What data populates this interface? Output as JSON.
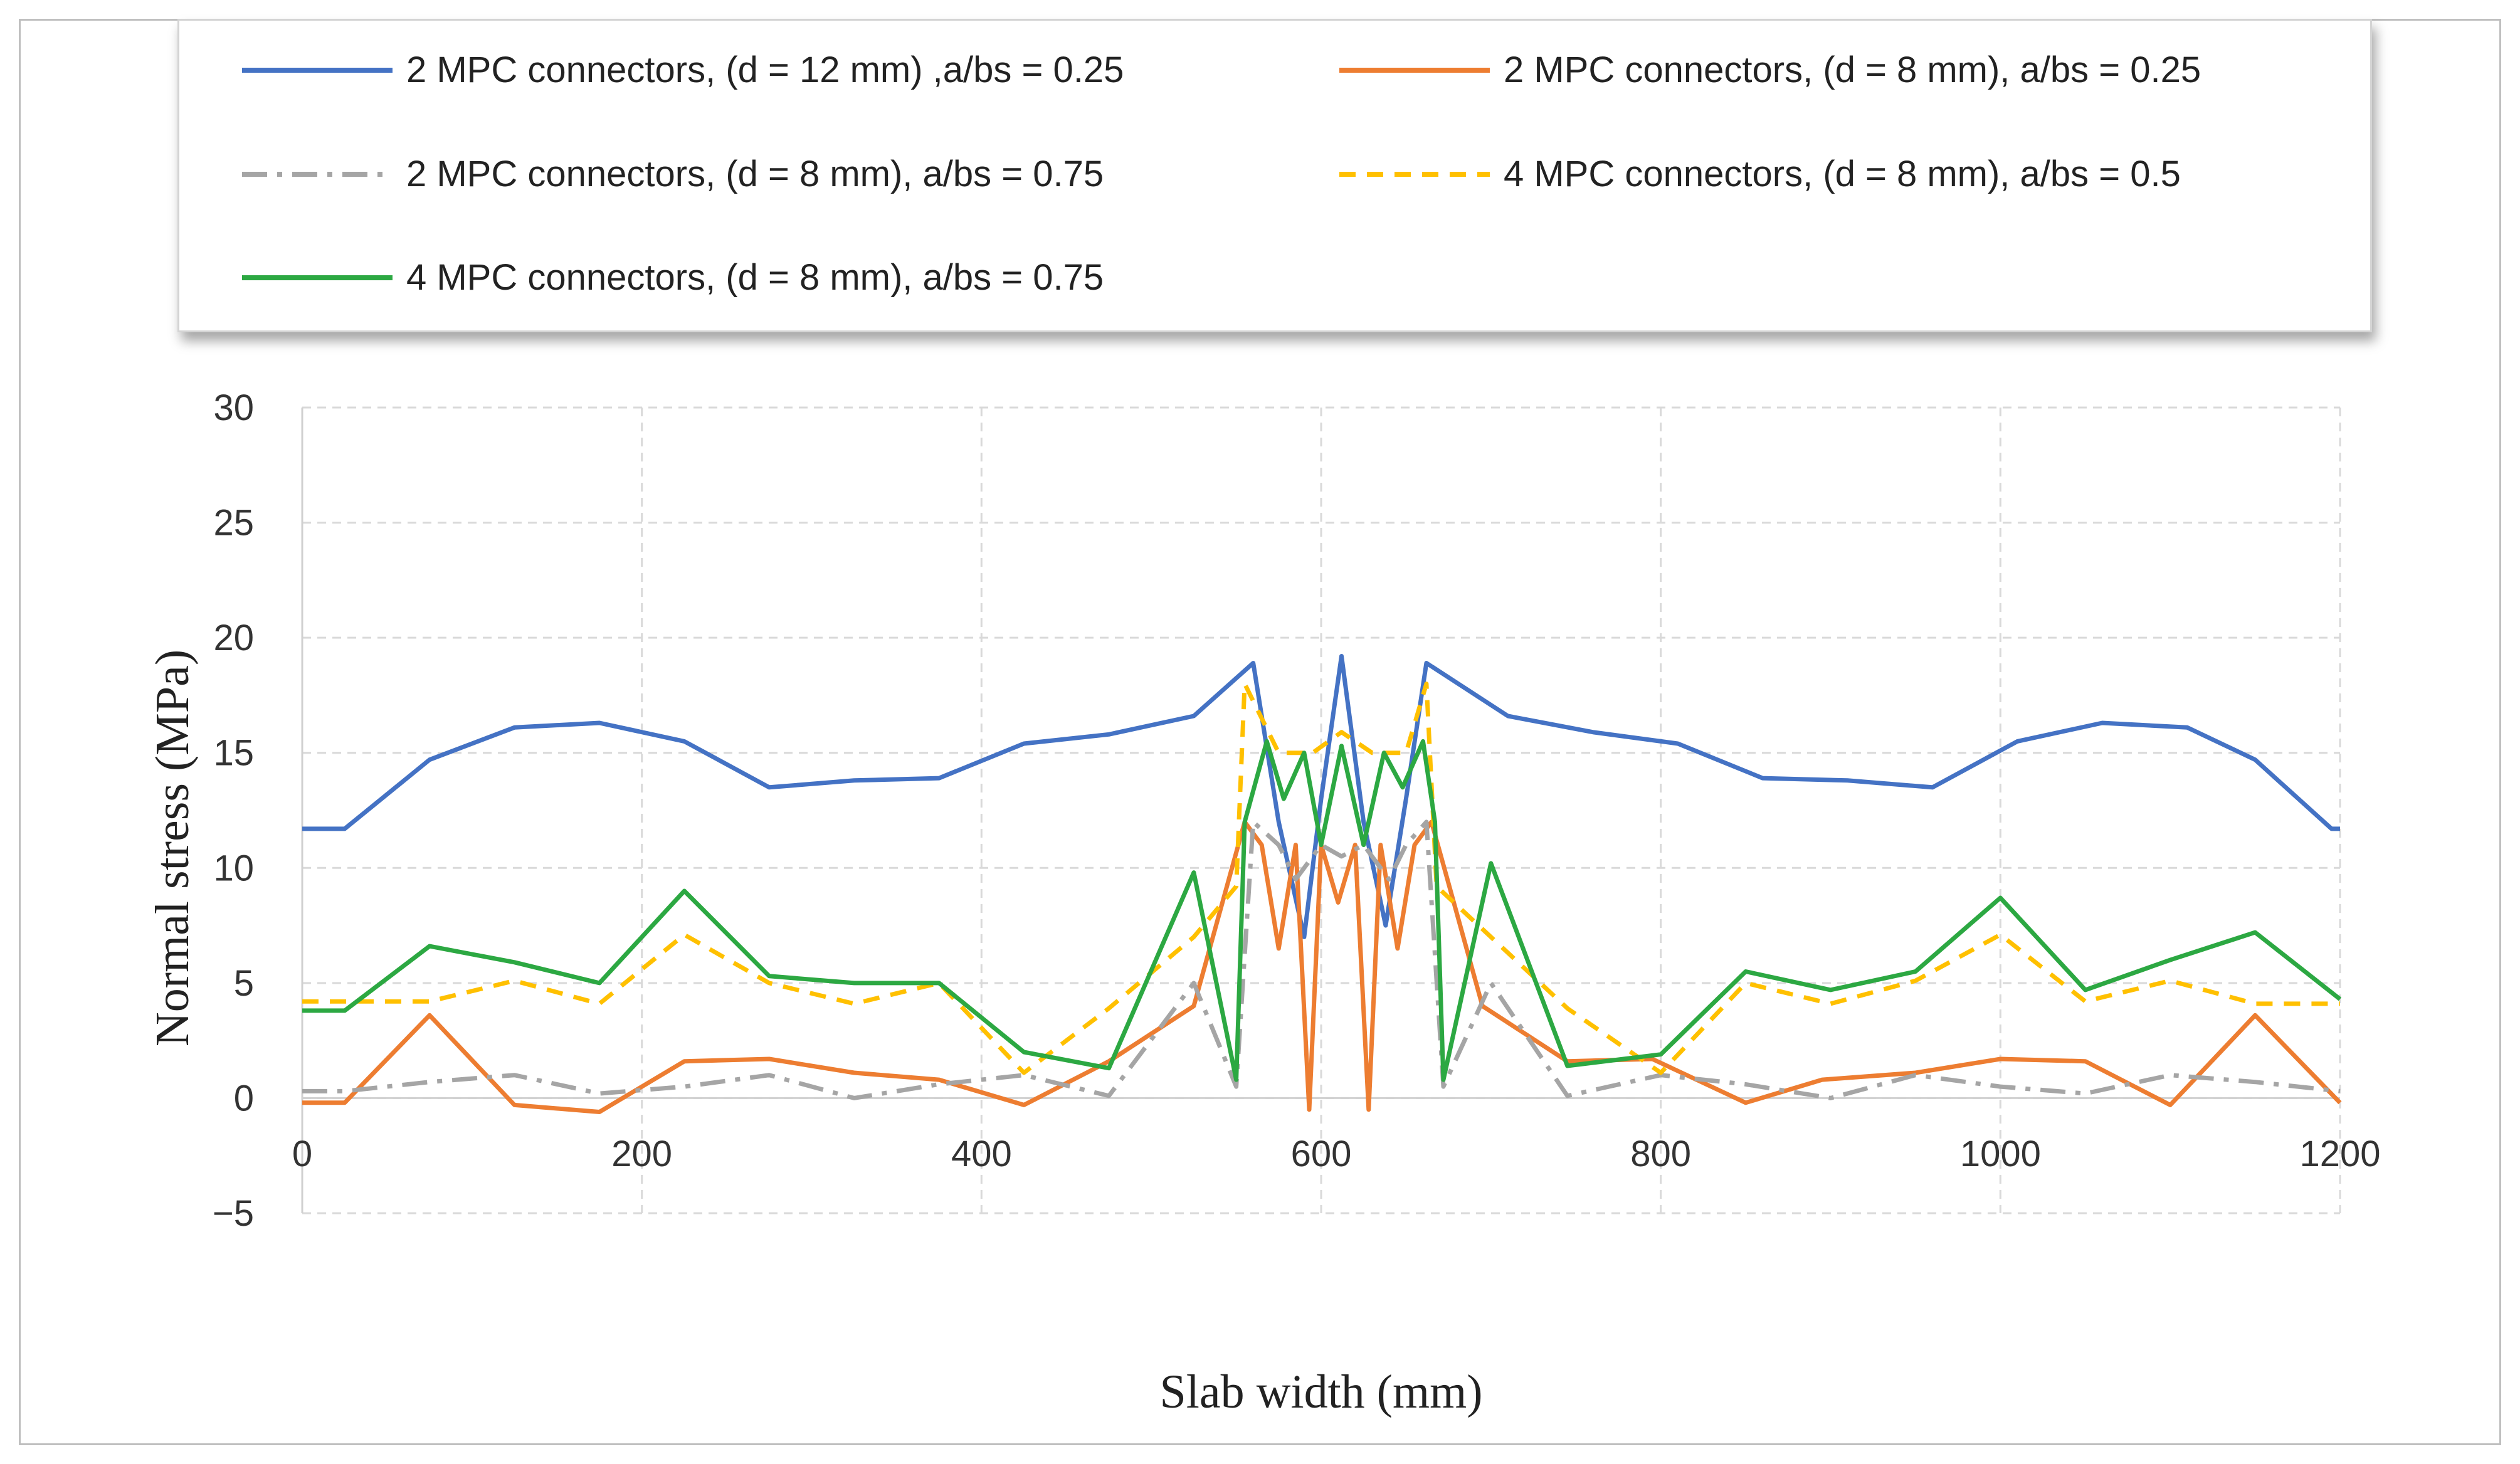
{
  "chart_data": {
    "type": "line",
    "title": "",
    "xlabel": "Slab width (mm)",
    "ylabel": "Normal stress (MPa)",
    "xlim": [
      0,
      1200
    ],
    "ylim": [
      -5,
      30
    ],
    "xticks": [
      0,
      200,
      400,
      600,
      800,
      1000,
      1200
    ],
    "yticks": [
      30,
      25,
      20,
      15,
      10,
      5,
      0,
      -5
    ],
    "grid": true,
    "legend_position": "top",
    "series": [
      {
        "name": "2 MPC connectors, (d = 12 mm) ,a/bs = 0.25",
        "color": "#4472C4",
        "dash": "solid",
        "points": [
          [
            0,
            11.7
          ],
          [
            25,
            11.7
          ],
          [
            75,
            14.7
          ],
          [
            125,
            16.1
          ],
          [
            175,
            16.3
          ],
          [
            225,
            15.5
          ],
          [
            275,
            13.5
          ],
          [
            325,
            13.8
          ],
          [
            375,
            13.9
          ],
          [
            425,
            15.4
          ],
          [
            475,
            15.8
          ],
          [
            525,
            16.6
          ],
          [
            560,
            18.9
          ],
          [
            575,
            12.0
          ],
          [
            590,
            7.0
          ],
          [
            600,
            13.0
          ],
          [
            612,
            19.2
          ],
          [
            625,
            12.0
          ],
          [
            638,
            7.5
          ],
          [
            650,
            13.0
          ],
          [
            662,
            18.9
          ],
          [
            710,
            16.6
          ],
          [
            760,
            15.9
          ],
          [
            810,
            15.4
          ],
          [
            860,
            13.9
          ],
          [
            910,
            13.8
          ],
          [
            960,
            13.5
          ],
          [
            1010,
            15.5
          ],
          [
            1060,
            16.3
          ],
          [
            1110,
            16.1
          ],
          [
            1150,
            14.7
          ],
          [
            1195,
            11.7
          ],
          [
            1200,
            11.7
          ]
        ]
      },
      {
        "name": "2 MPC connectors, (d = 8 mm), a/bs = 0.25",
        "color": "#ED7D31",
        "dash": "solid",
        "points": [
          [
            0,
            -0.2
          ],
          [
            25,
            -0.2
          ],
          [
            75,
            3.6
          ],
          [
            125,
            -0.3
          ],
          [
            175,
            -0.6
          ],
          [
            225,
            1.6
          ],
          [
            275,
            1.7
          ],
          [
            325,
            1.1
          ],
          [
            375,
            0.8
          ],
          [
            425,
            -0.3
          ],
          [
            475,
            1.6
          ],
          [
            525,
            4.0
          ],
          [
            555,
            12.0
          ],
          [
            565,
            11.0
          ],
          [
            575,
            6.5
          ],
          [
            585,
            11.0
          ],
          [
            593,
            -0.5
          ],
          [
            600,
            11.0
          ],
          [
            610,
            8.5
          ],
          [
            620,
            11.0
          ],
          [
            628,
            -0.5
          ],
          [
            635,
            11.0
          ],
          [
            645,
            6.5
          ],
          [
            655,
            11.0
          ],
          [
            665,
            12.0
          ],
          [
            695,
            4.0
          ],
          [
            745,
            1.6
          ],
          [
            795,
            1.7
          ],
          [
            850,
            -0.2
          ],
          [
            895,
            0.8
          ],
          [
            950,
            1.1
          ],
          [
            1000,
            1.7
          ],
          [
            1050,
            1.6
          ],
          [
            1100,
            -0.3
          ],
          [
            1150,
            3.6
          ],
          [
            1200,
            -0.2
          ]
        ]
      },
      {
        "name": "2 MPC connectors, (d = 8 mm), a/bs = 0.75",
        "color": "#A5A5A5",
        "dash": "dashdot",
        "points": [
          [
            0,
            0.3
          ],
          [
            25,
            0.3
          ],
          [
            75,
            0.7
          ],
          [
            125,
            1.0
          ],
          [
            175,
            0.2
          ],
          [
            225,
            0.5
          ],
          [
            275,
            1.0
          ],
          [
            325,
            0.0
          ],
          [
            375,
            0.6
          ],
          [
            425,
            1.0
          ],
          [
            475,
            0.1
          ],
          [
            525,
            5.0
          ],
          [
            550,
            0.5
          ],
          [
            560,
            12.0
          ],
          [
            575,
            11.0
          ],
          [
            585,
            9.5
          ],
          [
            600,
            11.0
          ],
          [
            612,
            10.5
          ],
          [
            625,
            11.0
          ],
          [
            640,
            9.5
          ],
          [
            650,
            11.0
          ],
          [
            662,
            12.0
          ],
          [
            672,
            0.5
          ],
          [
            700,
            5.0
          ],
          [
            745,
            0.1
          ],
          [
            800,
            1.0
          ],
          [
            850,
            0.6
          ],
          [
            900,
            0.0
          ],
          [
            950,
            1.0
          ],
          [
            1000,
            0.5
          ],
          [
            1050,
            0.2
          ],
          [
            1100,
            1.0
          ],
          [
            1150,
            0.7
          ],
          [
            1200,
            0.3
          ]
        ]
      },
      {
        "name": "4 MPC connectors, (d = 8 mm), a/bs = 0.5",
        "color": "#FFC000",
        "dash": "dash",
        "points": [
          [
            0,
            4.2
          ],
          [
            25,
            4.2
          ],
          [
            75,
            4.2
          ],
          [
            125,
            5.1
          ],
          [
            175,
            4.1
          ],
          [
            225,
            7.1
          ],
          [
            275,
            5.0
          ],
          [
            325,
            4.1
          ],
          [
            375,
            5.0
          ],
          [
            425,
            1.1
          ],
          [
            475,
            3.9
          ],
          [
            525,
            7.0
          ],
          [
            550,
            9.2
          ],
          [
            555,
            18.0
          ],
          [
            575,
            15.0
          ],
          [
            595,
            15.0
          ],
          [
            612,
            15.9
          ],
          [
            630,
            15.0
          ],
          [
            650,
            15.0
          ],
          [
            662,
            18.0
          ],
          [
            668,
            9.2
          ],
          [
            700,
            7.0
          ],
          [
            745,
            3.9
          ],
          [
            800,
            1.1
          ],
          [
            850,
            5.0
          ],
          [
            900,
            4.1
          ],
          [
            950,
            5.1
          ],
          [
            1000,
            7.1
          ],
          [
            1050,
            4.2
          ],
          [
            1100,
            5.1
          ],
          [
            1150,
            4.1
          ],
          [
            1200,
            4.1
          ]
        ]
      },
      {
        "name": "4 MPC connectors, (d = 8 mm), a/bs = 0.75",
        "color": "#2CA842",
        "dash": "solid",
        "points": [
          [
            0,
            3.8
          ],
          [
            25,
            3.8
          ],
          [
            75,
            6.6
          ],
          [
            125,
            5.9
          ],
          [
            175,
            5.0
          ],
          [
            225,
            9.0
          ],
          [
            275,
            5.3
          ],
          [
            325,
            5.0
          ],
          [
            375,
            5.0
          ],
          [
            425,
            2.0
          ],
          [
            475,
            1.3
          ],
          [
            525,
            9.8
          ],
          [
            550,
            0.8
          ],
          [
            555,
            12.0
          ],
          [
            568,
            15.5
          ],
          [
            578,
            13.0
          ],
          [
            590,
            15.0
          ],
          [
            600,
            11.0
          ],
          [
            612,
            15.3
          ],
          [
            625,
            11.0
          ],
          [
            637,
            15.0
          ],
          [
            648,
            13.5
          ],
          [
            660,
            15.5
          ],
          [
            667,
            12.0
          ],
          [
            672,
            0.8
          ],
          [
            700,
            10.2
          ],
          [
            745,
            1.4
          ],
          [
            800,
            1.9
          ],
          [
            850,
            5.5
          ],
          [
            900,
            4.7
          ],
          [
            950,
            5.5
          ],
          [
            1000,
            8.7
          ],
          [
            1050,
            4.7
          ],
          [
            1100,
            6.0
          ],
          [
            1150,
            7.2
          ],
          [
            1200,
            4.3
          ]
        ]
      }
    ]
  }
}
